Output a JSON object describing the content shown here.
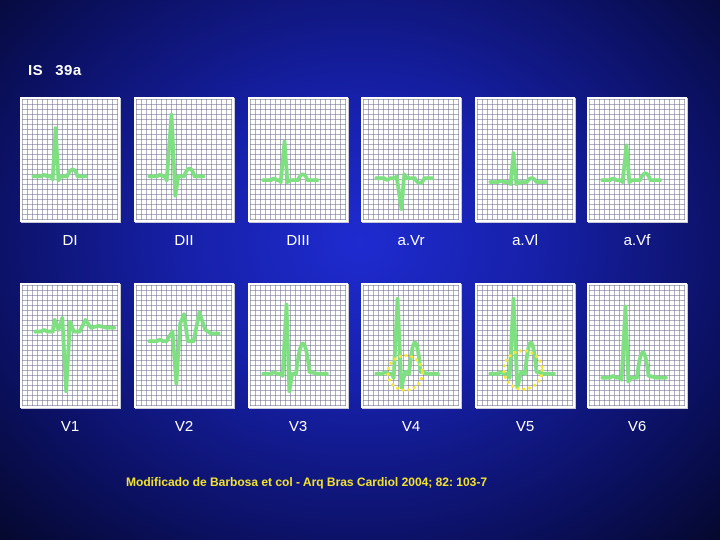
{
  "patient": {
    "id": "IS",
    "age": "39a"
  },
  "leads_row1": [
    "DI",
    "DII",
    "DIII",
    "a.Vr",
    "a.Vl",
    "a.Vf"
  ],
  "leads_row2": [
    "V1",
    "V2",
    "V3",
    "V4",
    "V5",
    "V6"
  ],
  "citation": "Modificado de Barbosa et col  - Arq Bras Cardiol 2004; 82: 103-7",
  "colors": {
    "trace": "#7ee081",
    "highlight": "#f6e533",
    "background": "#1620a8",
    "grid": "#ffffff"
  }
}
